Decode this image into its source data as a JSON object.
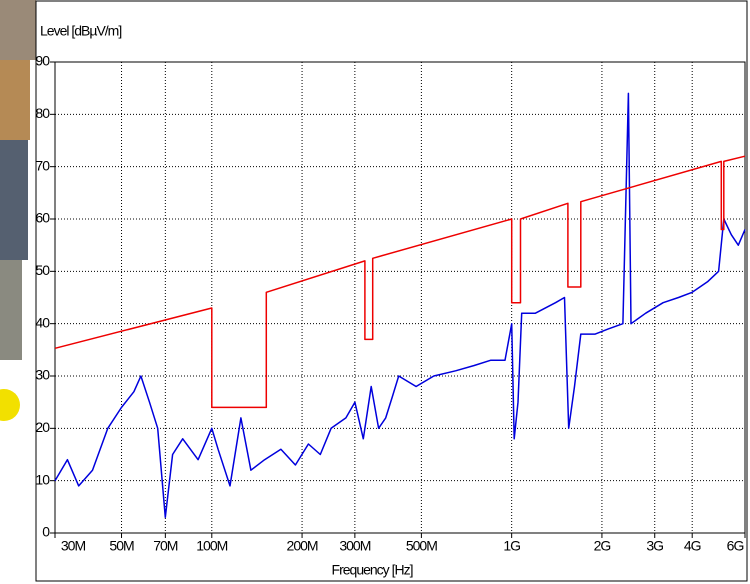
{
  "chart_data": {
    "type": "line",
    "y_label": "Level [dBµV/m]",
    "x_label": "Frequency [Hz]",
    "xscale": "log",
    "grid": true,
    "xlim": [
      30000000.0,
      6000000000.0
    ],
    "ylim": [
      0,
      90
    ],
    "yticks": [
      0,
      10,
      20,
      30,
      40,
      50,
      60,
      70,
      80,
      90
    ],
    "xticks": [
      {
        "value": 30000000.0,
        "label": "30M"
      },
      {
        "value": 50000000.0,
        "label": "50M"
      },
      {
        "value": 70000000.0,
        "label": "70M"
      },
      {
        "value": 100000000.0,
        "label": "100M"
      },
      {
        "value": 200000000.0,
        "label": "200M"
      },
      {
        "value": 300000000.0,
        "label": "300M"
      },
      {
        "value": 500000000.0,
        "label": "500M"
      },
      {
        "value": 1000000000.0,
        "label": "1G"
      },
      {
        "value": 2000000000.0,
        "label": "2G"
      },
      {
        "value": 3000000000.0,
        "label": "3G"
      },
      {
        "value": 4000000000.0,
        "label": "4G"
      },
      {
        "value": 6000000000.0,
        "label": "6G"
      }
    ],
    "series": [
      {
        "color": "#0000dd",
        "x": [
          30000000.0,
          33000000.0,
          36000000.0,
          40000000.0,
          45000000.0,
          50000000.0,
          55000000.0,
          58000000.0,
          62000000.0,
          66000000.0,
          70000000.0,
          74000000.0,
          80000000.0,
          90000000.0,
          100000000.0,
          105000000.0,
          115000000.0,
          125000000.0,
          135000000.0,
          150000000.0,
          170000000.0,
          190000000.0,
          210000000.0,
          230000000.0,
          250000000.0,
          280000000.0,
          300000000.0,
          320000000.0,
          340000000.0,
          360000000.0,
          380000000.0,
          400000000.0,
          420000000.0,
          480000000.0,
          550000000.0,
          650000000.0,
          750000000.0,
          850000000.0,
          950000000.0,
          1000000000.0,
          1020000000.0,
          1050000000.0,
          1080000000.0,
          1200000000.0,
          1400000000.0,
          1500000000.0,
          1550000000.0,
          1620000000.0,
          1700000000.0,
          1900000000.0,
          2100000000.0,
          2350000000.0,
          2450000000.0,
          2500000000.0,
          2800000000.0,
          3200000000.0,
          3600000000.0,
          4000000000.0,
          4500000000.0,
          4900000000.0,
          5100000000.0,
          5400000000.0,
          5700000000.0,
          6000000000.0
        ],
        "values": [
          10,
          14,
          9,
          12,
          20,
          24,
          27,
          30,
          25,
          20,
          3,
          15,
          18,
          14,
          20,
          16,
          9,
          22,
          12,
          14,
          16,
          13,
          17,
          15,
          20,
          22,
          25,
          18,
          28,
          20,
          22,
          26,
          30,
          28,
          30,
          31,
          32,
          33,
          33,
          40,
          18,
          25,
          42,
          42,
          44,
          45,
          20,
          28,
          38,
          38,
          39,
          40,
          84,
          40,
          42,
          44,
          45,
          46,
          48,
          50,
          60,
          57,
          55,
          58
        ]
      },
      {
        "color": "#ee0000",
        "x": [
          30000000.0,
          100000000.0,
          100000000.0,
          152000000.0,
          152000000.0,
          324000000.0,
          324000000.0,
          344000000.0,
          344000000.0,
          1000000000.0,
          1000000000.0,
          1070000000.0,
          1070000000.0,
          1540000000.0,
          1540000000.0,
          1700000000.0,
          1700000000.0,
          5000000000.0,
          5000000000.0,
          5100000000.0,
          5100000000.0,
          6000000000.0
        ],
        "values": [
          35.3,
          43,
          24,
          24,
          46,
          52,
          37,
          37,
          52.5,
          60,
          44,
          44,
          60,
          63,
          47,
          47,
          63.3,
          71,
          58,
          58,
          71,
          72
        ]
      }
    ]
  }
}
